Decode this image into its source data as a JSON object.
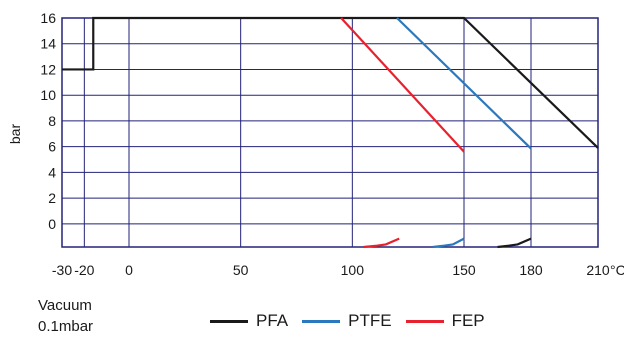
{
  "chart_data": {
    "type": "line",
    "title": "",
    "ylabel": "bar",
    "xlabel": "",
    "x_unit": "°C",
    "xlim": [
      -30,
      210
    ],
    "ylim": [
      -1.8,
      16
    ],
    "grid": true,
    "x_ticks": [
      -30,
      -20,
      0,
      50,
      100,
      150,
      180,
      210
    ],
    "x_tick_labels": [
      "-30",
      "-20",
      "0",
      "50",
      "100",
      "150",
      "180",
      "210"
    ],
    "x_gridlines": [
      -20,
      0,
      50,
      100,
      150,
      180
    ],
    "y_ticks": [
      0,
      2,
      4,
      6,
      8,
      10,
      12,
      14,
      16
    ],
    "y_tick_labels": [
      "0",
      "2",
      "4",
      "6",
      "8",
      "10",
      "12",
      "14",
      "16"
    ],
    "vacuum_label": [
      "Vacuum",
      "0.1mbar"
    ],
    "series": [
      {
        "name": "PFA",
        "color": "#1a1a1a",
        "points": [
          [
            -30,
            12
          ],
          [
            -16,
            12
          ],
          [
            -16,
            16
          ],
          [
            150,
            16
          ],
          [
            210,
            5.9
          ]
        ],
        "vacuum_points": [
          [
            165,
            -1.8
          ],
          [
            170,
            -1.7
          ],
          [
            174,
            -1.6
          ],
          [
            180,
            -1.15
          ]
        ]
      },
      {
        "name": "PTFE",
        "color": "#2a78bd",
        "points": [
          [
            120,
            16
          ],
          [
            180,
            5.85
          ]
        ],
        "vacuum_points": [
          [
            136,
            -1.8
          ],
          [
            141,
            -1.7
          ],
          [
            145,
            -1.6
          ],
          [
            150,
            -1.15
          ]
        ]
      },
      {
        "name": "FEP",
        "color": "#e8212e",
        "points": [
          [
            95,
            16
          ],
          [
            150,
            5.6
          ]
        ],
        "vacuum_points": [
          [
            105,
            -1.8
          ],
          [
            111,
            -1.7
          ],
          [
            115,
            -1.6
          ],
          [
            121,
            -1.15
          ]
        ]
      }
    ]
  }
}
